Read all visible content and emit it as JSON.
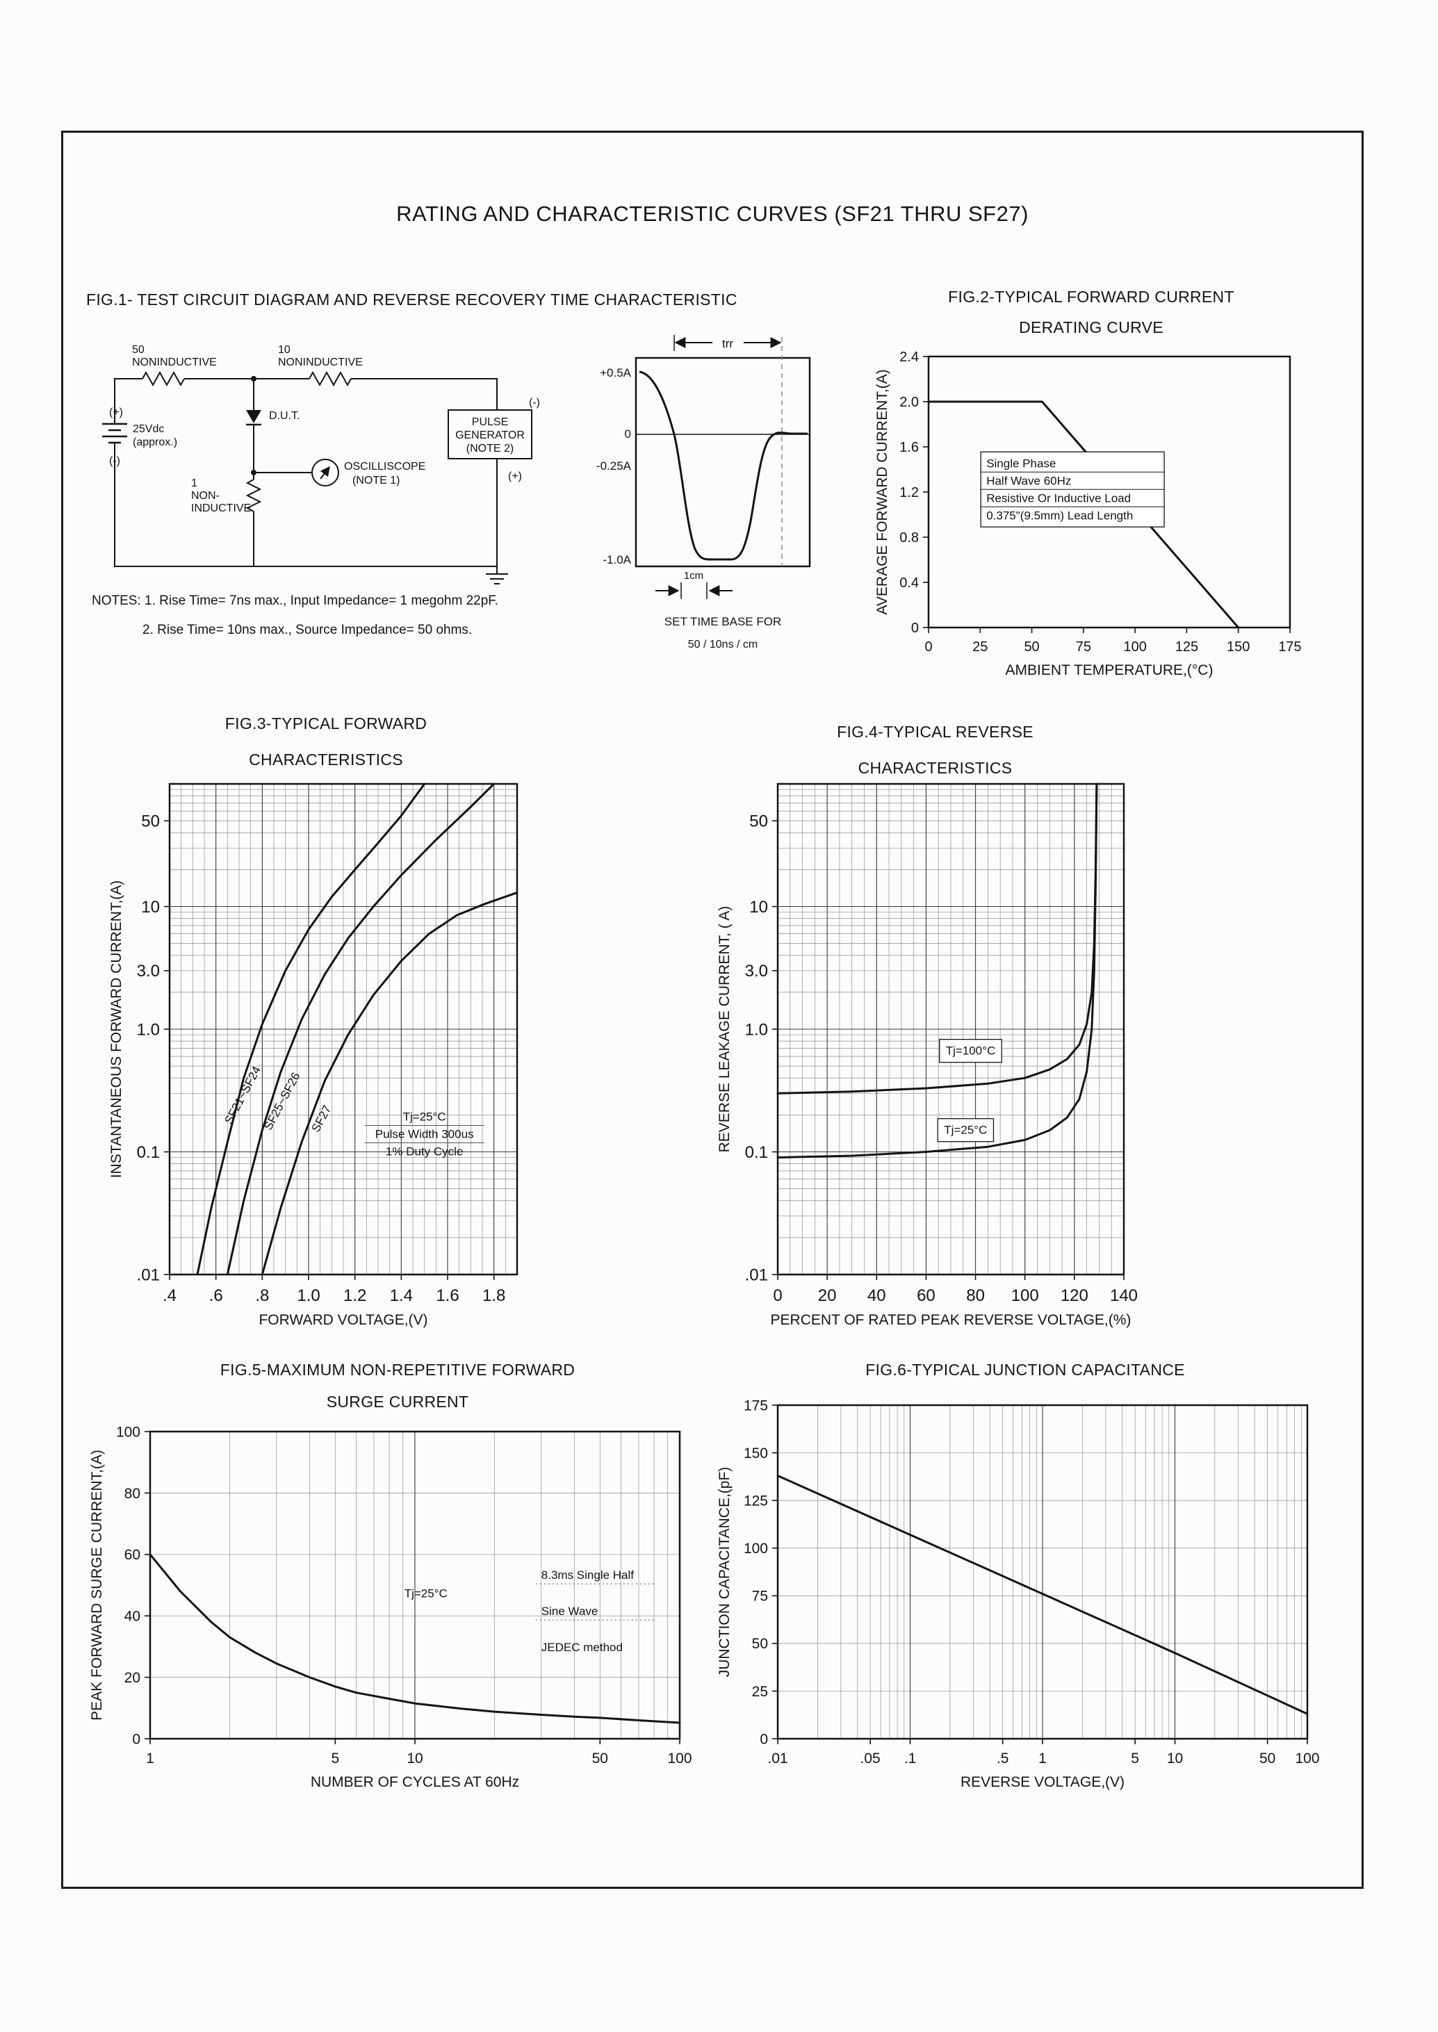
{
  "page": {
    "title": "RATING AND CHARACTERISTIC CURVES (SF21 THRU SF27)"
  },
  "fig1": {
    "title": "FIG.1- TEST CIRCUIT DIAGRAM AND REVERSE RECOVERY TIME CHARACTERISTIC",
    "circuit": {
      "r1_label": "50",
      "r1_sub": "NONINDUCTIVE",
      "r2_label": "10",
      "r2_sub": "NONINDUCTIVE",
      "battery_plus": "(+)",
      "battery_v": "25Vdc",
      "battery_approx": "(approx.)",
      "battery_minus": "(-)",
      "dut": "D.U.T.",
      "r3_label": "1",
      "r3_sub1": "NON-",
      "r3_sub2": "INDUCTIVE",
      "scope1": "OSCILLISCOPE",
      "scope2": "(NOTE 1)",
      "pg_minus": "(-)",
      "pg1": "PULSE",
      "pg2": "GENERATOR",
      "pg3": "(NOTE 2)",
      "pg_plus": "(+)"
    },
    "waveform": {
      "trr": "trr",
      "y_labels": [
        "+0.5A",
        "0",
        "-0.25A",
        "-1.0A"
      ],
      "cm": "1cm",
      "caption1": "SET TIME BASE FOR",
      "caption2": "50 / 10ns / cm"
    },
    "notes": [
      "NOTES: 1. Rise Time= 7ns max., Input Impedance= 1 megohm 22pF.",
      "2. Rise Time= 10ns max., Source Impedance= 50 ohms."
    ]
  },
  "chart_data": {
    "fig2": {
      "type": "line",
      "title1": "FIG.2-TYPICAL FORWARD CURRENT",
      "title2": "DERATING CURVE",
      "xlabel": "AMBIENT TEMPERATURE,(°C)",
      "ylabel": "AVERAGE FORWARD CURRENT,(A)",
      "x_scale": "linear",
      "y_scale": "linear",
      "xlim": [
        0,
        175
      ],
      "ylim": [
        0,
        2.4
      ],
      "tick_font": 20,
      "x_ticks": [
        [
          0,
          "0"
        ],
        [
          25,
          "25"
        ],
        [
          50,
          "50"
        ],
        [
          75,
          "75"
        ],
        [
          100,
          "100"
        ],
        [
          125,
          "125"
        ],
        [
          150,
          "150"
        ],
        [
          175,
          "175"
        ]
      ],
      "y_ticks": [
        [
          0,
          "0"
        ],
        [
          0.4,
          "0.4"
        ],
        [
          0.8,
          "0.8"
        ],
        [
          1.2,
          "1.2"
        ],
        [
          1.6,
          "1.6"
        ],
        [
          2,
          "2.0"
        ],
        [
          2.4,
          "2.4"
        ]
      ],
      "series": [
        {
          "name": "derating-curve",
          "points": [
            [
              0,
              2
            ],
            [
              55,
              2
            ],
            [
              150,
              0
            ]
          ]
        }
      ],
      "annotations": [
        {
          "x": 28,
          "y": 1.42,
          "anchor": "start",
          "boxed": true,
          "table": true,
          "font": 17,
          "lines": [
            "Single Phase",
            "Half Wave 60Hz",
            "Resistive Or Inductive Load",
            "0.375\"(9.5mm) Lead Length"
          ]
        }
      ]
    },
    "fig3": {
      "type": "line",
      "title1": "FIG.3-TYPICAL FORWARD",
      "title2": "CHARACTERISTICS",
      "xlabel": "FORWARD VOLTAGE,(V)",
      "ylabel": "INSTANTANEOUS FORWARD CURRENT,(A)",
      "x_scale": "linear",
      "y_scale": "log",
      "xlim": [
        0.4,
        1.9
      ],
      "ylim": [
        0.01,
        100
      ],
      "x_minor": 0.05,
      "x_major": [
        0.6,
        0.8,
        1,
        1.2,
        1.4,
        1.6,
        1.8
      ],
      "y_major": [
        0.1,
        1,
        10
      ],
      "tick_font": 24,
      "x_ticks": [
        [
          0.4,
          ".4"
        ],
        [
          0.6,
          ".6"
        ],
        [
          0.8,
          ".8"
        ],
        [
          1,
          "1.0"
        ],
        [
          1.2,
          "1.2"
        ],
        [
          1.4,
          "1.4"
        ],
        [
          1.6,
          "1.6"
        ],
        [
          1.8,
          "1.8"
        ]
      ],
      "y_ticks": [
        [
          50,
          "50"
        ],
        [
          10,
          "10"
        ],
        [
          3,
          "3.0"
        ],
        [
          1,
          "1.0"
        ],
        [
          0.1,
          "0.1"
        ],
        [
          0.01,
          ".01"
        ]
      ],
      "series": [
        {
          "name": "SF21-SF24",
          "points": [
            [
              0.52,
              0.01
            ],
            [
              0.58,
              0.035
            ],
            [
              0.65,
              0.12
            ],
            [
              0.72,
              0.4
            ],
            [
              0.8,
              1.1
            ],
            [
              0.9,
              3
            ],
            [
              1,
              6.5
            ],
            [
              1.1,
              12
            ],
            [
              1.2,
              20
            ],
            [
              1.3,
              33
            ],
            [
              1.4,
              55
            ],
            [
              1.5,
              100
            ]
          ]
        },
        {
          "name": "SF25-SF26",
          "points": [
            [
              0.65,
              0.01
            ],
            [
              0.72,
              0.04
            ],
            [
              0.8,
              0.15
            ],
            [
              0.88,
              0.45
            ],
            [
              0.97,
              1.2
            ],
            [
              1.07,
              2.8
            ],
            [
              1.17,
              5.5
            ],
            [
              1.28,
              10
            ],
            [
              1.4,
              18
            ],
            [
              1.55,
              35
            ],
            [
              1.7,
              65
            ],
            [
              1.8,
              100
            ]
          ]
        },
        {
          "name": "SF27",
          "points": [
            [
              0.8,
              0.01
            ],
            [
              0.88,
              0.035
            ],
            [
              0.97,
              0.12
            ],
            [
              1.07,
              0.38
            ],
            [
              1.17,
              0.9
            ],
            [
              1.28,
              1.9
            ],
            [
              1.4,
              3.6
            ],
            [
              1.52,
              6
            ],
            [
              1.64,
              8.5
            ],
            [
              1.76,
              10.5
            ],
            [
              1.9,
              13
            ]
          ]
        }
      ],
      "annotations": [
        {
          "x": 0.73,
          "y": 0.28,
          "rotate": -62,
          "font": 17,
          "lines": [
            "SF21~SF24"
          ]
        },
        {
          "x": 0.9,
          "y": 0.25,
          "rotate": -62,
          "font": 17,
          "lines": [
            "SF25~SF26"
          ]
        },
        {
          "x": 1.07,
          "y": 0.18,
          "rotate": -62,
          "font": 17,
          "lines": [
            "SF27"
          ]
        },
        {
          "x": 1.5,
          "y": 0.18,
          "anchor": "middle",
          "font": 17,
          "ruled": true,
          "lines": [
            "Tj=25°C",
            "Pulse Width 300us",
            "1% Duty Cycle"
          ]
        }
      ]
    },
    "fig4": {
      "type": "line",
      "title1": "FIG.4-TYPICAL REVERSE",
      "title2": "CHARACTERISTICS",
      "xlabel": "PERCENT OF RATED PEAK REVERSE VOLTAGE,(%)",
      "ylabel": "REVERSE LEAKAGE CURRENT, ( A)",
      "x_scale": "linear",
      "y_scale": "log",
      "xlim": [
        0,
        140
      ],
      "ylim": [
        0.01,
        100
      ],
      "x_minor": 5,
      "x_major": [
        20,
        40,
        60,
        80,
        100,
        120
      ],
      "y_major": [
        0.1,
        1,
        10
      ],
      "tick_font": 24,
      "x_ticks": [
        [
          0,
          "0"
        ],
        [
          20,
          "20"
        ],
        [
          40,
          "40"
        ],
        [
          60,
          "60"
        ],
        [
          80,
          "80"
        ],
        [
          100,
          "100"
        ],
        [
          120,
          "120"
        ],
        [
          140,
          "140"
        ]
      ],
      "y_ticks": [
        [
          50,
          "50"
        ],
        [
          10,
          "10"
        ],
        [
          3,
          "3.0"
        ],
        [
          1,
          "1.0"
        ],
        [
          0.1,
          "0.1"
        ],
        [
          0.01,
          ".01"
        ]
      ],
      "series": [
        {
          "name": "Tj-100C",
          "points": [
            [
              0,
              0.3
            ],
            [
              30,
              0.31
            ],
            [
              60,
              0.33
            ],
            [
              85,
              0.36
            ],
            [
              100,
              0.4
            ],
            [
              110,
              0.47
            ],
            [
              117,
              0.57
            ],
            [
              122,
              0.75
            ],
            [
              125,
              1.1
            ],
            [
              127,
              2
            ],
            [
              128,
              5
            ],
            [
              128.6,
              20
            ],
            [
              129,
              100
            ]
          ]
        },
        {
          "name": "Tj-25C",
          "points": [
            [
              0,
              0.09
            ],
            [
              30,
              0.093
            ],
            [
              60,
              0.1
            ],
            [
              85,
              0.11
            ],
            [
              100,
              0.125
            ],
            [
              110,
              0.15
            ],
            [
              117,
              0.19
            ],
            [
              122,
              0.27
            ],
            [
              125,
              0.45
            ],
            [
              127,
              1
            ],
            [
              128,
              3
            ],
            [
              128.6,
              15
            ],
            [
              129,
              100
            ]
          ]
        }
      ],
      "annotations": [
        {
          "x": 78,
          "y": 0.62,
          "anchor": "middle",
          "boxed": true,
          "font": 17,
          "lines": [
            "Tj=100°C"
          ]
        },
        {
          "x": 76,
          "y": 0.14,
          "anchor": "middle",
          "boxed": true,
          "font": 17,
          "lines": [
            "Tj=25°C"
          ]
        }
      ]
    },
    "fig5": {
      "type": "line",
      "title1": "FIG.5-MAXIMUM NON-REPETITIVE FORWARD",
      "title2": "SURGE CURRENT",
      "xlabel": "NUMBER OF CYCLES AT 60Hz",
      "ylabel": "PEAK FORWARD SURGE CURRENT,(A)",
      "x_scale": "log",
      "y_scale": "linear",
      "xlim": [
        1,
        100
      ],
      "ylim": [
        0,
        100
      ],
      "y_minor": 20,
      "x_major": [
        10
      ],
      "tick_font": 21,
      "x_ticks": [
        [
          1,
          "1"
        ],
        [
          5,
          "5"
        ],
        [
          10,
          "10"
        ],
        [
          50,
          "50"
        ],
        [
          100,
          "100"
        ]
      ],
      "y_ticks": [
        [
          0,
          "0"
        ],
        [
          20,
          "20"
        ],
        [
          40,
          "40"
        ],
        [
          60,
          "60"
        ],
        [
          80,
          "80"
        ],
        [
          100,
          "100"
        ]
      ],
      "series": [
        {
          "name": "surge-current",
          "points": [
            [
              1,
              60
            ],
            [
              1.3,
              48
            ],
            [
              1.7,
              38
            ],
            [
              2,
              33
            ],
            [
              2.5,
              28
            ],
            [
              3,
              24.5
            ],
            [
              4,
              20
            ],
            [
              5,
              17
            ],
            [
              6,
              15
            ],
            [
              8,
              13
            ],
            [
              10,
              11.5
            ],
            [
              15,
              9.8
            ],
            [
              20,
              8.8
            ],
            [
              30,
              7.8
            ],
            [
              40,
              7.2
            ],
            [
              50,
              6.8
            ],
            [
              70,
              6
            ],
            [
              100,
              5.2
            ]
          ]
        }
      ],
      "annotations": [
        {
          "x": 11,
          "y": 46,
          "anchor": "middle",
          "font": 17,
          "lines": [
            "Tj=25°C"
          ]
        },
        {
          "x": 30,
          "y": 52,
          "anchor": "start",
          "font": 17,
          "ruled": true,
          "rule_dash": true,
          "lh": 52,
          "lines": [
            "8.3ms Single Half",
            "Sine Wave",
            "JEDEC method"
          ]
        }
      ]
    },
    "fig6": {
      "type": "line",
      "title1": "FIG.6-TYPICAL JUNCTION CAPACITANCE",
      "title2": "",
      "xlabel": "REVERSE VOLTAGE,(V)",
      "ylabel": "JUNCTION CAPACITANCE,(pF)",
      "x_scale": "log",
      "y_scale": "linear",
      "xlim": [
        0.01,
        100
      ],
      "ylim": [
        0,
        175
      ],
      "y_minor": 25,
      "x_major": [
        0.1,
        1,
        10
      ],
      "tick_font": 21,
      "x_ticks": [
        [
          0.01,
          ".01"
        ],
        [
          0.05,
          ".05"
        ],
        [
          0.1,
          ".1"
        ],
        [
          0.5,
          ".5"
        ],
        [
          1,
          "1"
        ],
        [
          5,
          "5"
        ],
        [
          10,
          "10"
        ],
        [
          50,
          "50"
        ],
        [
          100,
          "100"
        ]
      ],
      "y_ticks": [
        [
          0,
          "0"
        ],
        [
          25,
          "25"
        ],
        [
          50,
          "50"
        ],
        [
          75,
          "75"
        ],
        [
          100,
          "100"
        ],
        [
          125,
          "125"
        ],
        [
          150,
          "150"
        ],
        [
          175,
          "175"
        ]
      ],
      "series": [
        {
          "name": "junction-capacitance",
          "points": [
            [
              0.01,
              138
            ],
            [
              0.1,
              107
            ],
            [
              1,
              76
            ],
            [
              10,
              45
            ],
            [
              100,
              13
            ]
          ]
        }
      ],
      "annotations": []
    }
  }
}
